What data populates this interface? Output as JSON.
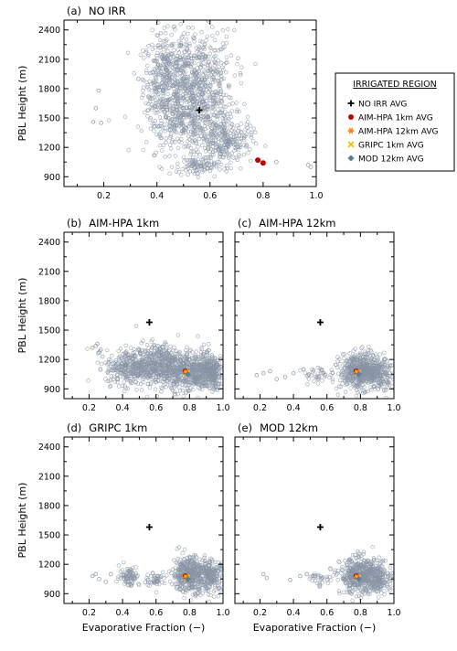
{
  "figure": {
    "legend": {
      "title": "IRRIGATED REGION",
      "items": [
        {
          "label": "NO IRR AVG",
          "marker": "plus",
          "color": "#000000"
        },
        {
          "label": "AIM-HPA 1km AVG",
          "marker": "dot",
          "color": "#c00000"
        },
        {
          "label": "AIM-HPA 12km AVG",
          "marker": "asterisk",
          "color": "#ff7f00"
        },
        {
          "label": "GRIPC 1km AVG",
          "marker": "cross",
          "color": "#ffc000"
        },
        {
          "label": "MOD 12km AVG",
          "marker": "diamond",
          "color": "#5b7e9a"
        }
      ]
    },
    "scatter_color": "#8894a4"
  },
  "chart_data": [
    {
      "type": "scatter",
      "panel": "(a)",
      "title": "NO IRR",
      "xlabel": "",
      "ylabel": "PBL Height (m)",
      "xlim": [
        0.05,
        1.0
      ],
      "ylim": [
        800,
        2500
      ],
      "xticks": [
        "0.2",
        "0.4",
        "0.6",
        "0.8",
        "1.0"
      ],
      "yticks": [
        "900",
        "1200",
        "1500",
        "1800",
        "2100",
        "2400"
      ],
      "cloud": [
        {
          "x": 0.43,
          "y": 1900,
          "sx": 0.04,
          "sy": 230,
          "n": 320
        },
        {
          "x": 0.55,
          "y": 1830,
          "sx": 0.07,
          "sy": 280,
          "n": 620
        },
        {
          "x": 0.52,
          "y": 1450,
          "sx": 0.08,
          "sy": 160,
          "n": 300
        },
        {
          "x": 0.66,
          "y": 1260,
          "sx": 0.05,
          "sy": 110,
          "n": 220
        },
        {
          "x": 0.55,
          "y": 1000,
          "sx": 0.04,
          "sy": 45,
          "n": 90
        }
      ],
      "outliers": [
        [
          0.18,
          1780
        ],
        [
          0.17,
          1600
        ],
        [
          0.19,
          1450
        ],
        [
          0.16,
          1460
        ],
        [
          0.97,
          1020
        ],
        [
          0.98,
          1000
        ],
        [
          0.85,
          1050
        ],
        [
          0.33,
          1900
        ]
      ],
      "averages": [
        {
          "marker": "plus",
          "x": 0.56,
          "y": 1580
        },
        {
          "marker": "dot",
          "x": 0.78,
          "y": 1070
        },
        {
          "marker": "dot",
          "x": 0.8,
          "y": 1040
        }
      ]
    },
    {
      "type": "scatter",
      "panel": "(b)",
      "title": "AIM-HPA 1km",
      "xlabel": "",
      "ylabel": "PBL Height (m)",
      "xlim": [
        0.05,
        1.0
      ],
      "ylim": [
        800,
        2500
      ],
      "xticks": [
        "0.2",
        "0.4",
        "0.6",
        "0.8",
        "1.0"
      ],
      "yticks": [
        "900",
        "1200",
        "1500",
        "1800",
        "2100",
        "2400"
      ],
      "cloud": [
        {
          "x": 0.46,
          "y": 1120,
          "sx": 0.08,
          "sy": 90,
          "n": 350
        },
        {
          "x": 0.62,
          "y": 1150,
          "sx": 0.07,
          "sy": 110,
          "n": 380
        },
        {
          "x": 0.82,
          "y": 1080,
          "sx": 0.08,
          "sy": 100,
          "n": 520
        },
        {
          "x": 0.93,
          "y": 1060,
          "sx": 0.04,
          "sy": 90,
          "n": 200
        }
      ],
      "outliers": [
        [
          0.22,
          1320
        ],
        [
          0.24,
          1340
        ],
        [
          0.25,
          1360
        ],
        [
          0.27,
          1300
        ],
        [
          0.26,
          1270
        ],
        [
          0.28,
          1230
        ]
      ],
      "averages": [
        {
          "marker": "plus",
          "x": 0.56,
          "y": 1580
        },
        {
          "marker": "dot",
          "x": 0.775,
          "y": 1080
        },
        {
          "marker": "asterisk",
          "x": 0.78,
          "y": 1070
        },
        {
          "marker": "cross",
          "x": 0.785,
          "y": 1060
        },
        {
          "marker": "diamond",
          "x": 0.79,
          "y": 1050
        }
      ]
    },
    {
      "type": "scatter",
      "panel": "(c)",
      "title": "AIM-HPA 12km",
      "xlabel": "",
      "ylabel": "",
      "xlim": [
        0.05,
        1.0
      ],
      "ylim": [
        800,
        2500
      ],
      "xticks": [
        "0.2",
        "0.4",
        "0.6",
        "0.8",
        "1.0"
      ],
      "yticks": [],
      "cloud": [
        {
          "x": 0.8,
          "y": 1080,
          "sx": 0.06,
          "sy": 90,
          "n": 520
        },
        {
          "x": 0.92,
          "y": 1050,
          "sx": 0.04,
          "sy": 70,
          "n": 160
        },
        {
          "x": 0.55,
          "y": 1040,
          "sx": 0.05,
          "sy": 40,
          "n": 40
        }
      ],
      "outliers": [
        [
          0.18,
          1040
        ],
        [
          0.22,
          1060
        ],
        [
          0.26,
          1080
        ],
        [
          0.35,
          1020
        ],
        [
          0.4,
          1060
        ],
        [
          0.46,
          1100
        ],
        [
          0.3,
          1000
        ]
      ],
      "averages": [
        {
          "marker": "plus",
          "x": 0.56,
          "y": 1580
        },
        {
          "marker": "dot",
          "x": 0.775,
          "y": 1080
        },
        {
          "marker": "asterisk",
          "x": 0.78,
          "y": 1070
        },
        {
          "marker": "cross",
          "x": 0.785,
          "y": 1060
        },
        {
          "marker": "diamond",
          "x": 0.79,
          "y": 1050
        }
      ]
    },
    {
      "type": "scatter",
      "panel": "(d)",
      "title": "GRIPC 1km",
      "xlabel": "Evaporative Fraction (−)",
      "ylabel": "PBL Height (m)",
      "xlim": [
        0.05,
        1.0
      ],
      "ylim": [
        800,
        2500
      ],
      "xticks": [
        "0.2",
        "0.4",
        "0.6",
        "0.8",
        "1.0"
      ],
      "yticks": [
        "900",
        "1200",
        "1500",
        "1800",
        "2100",
        "2400"
      ],
      "cloud": [
        {
          "x": 0.8,
          "y": 1100,
          "sx": 0.05,
          "sy": 90,
          "n": 420
        },
        {
          "x": 0.93,
          "y": 1080,
          "sx": 0.04,
          "sy": 80,
          "n": 200
        },
        {
          "x": 0.44,
          "y": 1080,
          "sx": 0.03,
          "sy": 50,
          "n": 80
        },
        {
          "x": 0.6,
          "y": 1050,
          "sx": 0.03,
          "sy": 40,
          "n": 50
        }
      ],
      "outliers": [
        [
          0.22,
          1080
        ],
        [
          0.24,
          1100
        ],
        [
          0.26,
          1050
        ],
        [
          0.3,
          1020
        ],
        [
          0.33,
          1100
        ]
      ],
      "averages": [
        {
          "marker": "plus",
          "x": 0.56,
          "y": 1580
        },
        {
          "marker": "dot",
          "x": 0.775,
          "y": 1080
        },
        {
          "marker": "asterisk",
          "x": 0.78,
          "y": 1070
        },
        {
          "marker": "cross",
          "x": 0.785,
          "y": 1060
        },
        {
          "marker": "diamond",
          "x": 0.79,
          "y": 1050
        }
      ]
    },
    {
      "type": "scatter",
      "panel": "(e)",
      "title": "MOD 12km",
      "xlabel": "Evaporative Fraction (−)",
      "ylabel": "",
      "xlim": [
        0.05,
        1.0
      ],
      "ylim": [
        800,
        2500
      ],
      "xticks": [
        "0.2",
        "0.4",
        "0.6",
        "0.8",
        "1.0"
      ],
      "yticks": [],
      "cloud": [
        {
          "x": 0.8,
          "y": 1080,
          "sx": 0.06,
          "sy": 90,
          "n": 480
        },
        {
          "x": 0.92,
          "y": 1060,
          "sx": 0.04,
          "sy": 70,
          "n": 160
        },
        {
          "x": 0.55,
          "y": 1050,
          "sx": 0.04,
          "sy": 40,
          "n": 30
        }
      ],
      "outliers": [
        [
          0.22,
          1100
        ],
        [
          0.24,
          1060
        ],
        [
          0.38,
          1040
        ],
        [
          0.44,
          1080
        ],
        [
          0.48,
          1100
        ]
      ],
      "averages": [
        {
          "marker": "plus",
          "x": 0.56,
          "y": 1580
        },
        {
          "marker": "dot",
          "x": 0.775,
          "y": 1080
        },
        {
          "marker": "asterisk",
          "x": 0.78,
          "y": 1070
        },
        {
          "marker": "cross",
          "x": 0.785,
          "y": 1060
        },
        {
          "marker": "diamond",
          "x": 0.79,
          "y": 1050
        }
      ]
    }
  ]
}
